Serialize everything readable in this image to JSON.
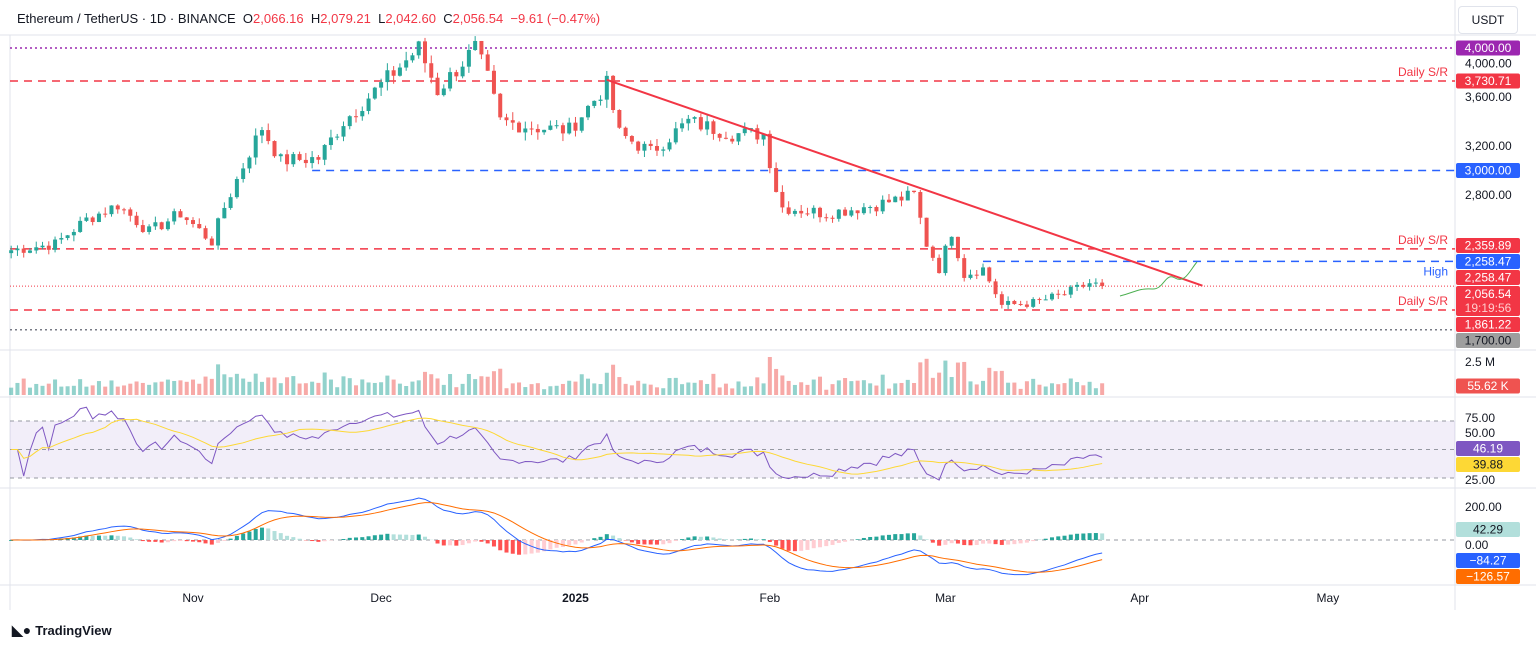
{
  "header": {
    "symbol": "Ethereum / TetherUS · 1D · BINANCE",
    "o_label": "O",
    "o": "2,066.16",
    "h_label": "H",
    "h": "2,079.21",
    "l_label": "L",
    "l": "2,042.60",
    "c_label": "C",
    "c": "2,056.54",
    "change": "−9.61 (−0.47%)"
  },
  "currency": "USDT",
  "branding": "TradingView",
  "colors": {
    "up": "#26a69a",
    "down": "#ef5350",
    "sr": "#f23645",
    "blue": "#2962ff",
    "rsi": "#7e57c2",
    "rsi_ma": "#fdd835",
    "macd": "#2962ff",
    "signal": "#ff6d00",
    "trend": "#f23645",
    "projection": "#4caf50"
  },
  "chart_data": {
    "type": "candlestick",
    "price_ticks": [
      "4,000.00",
      "3,600.00",
      "3,200.00",
      "2,800.00"
    ],
    "price_tick_values": [
      4000,
      3600,
      3200,
      2800
    ],
    "time_labels": [
      {
        "date": "2024-11-01",
        "label": "Nov"
      },
      {
        "date": "2024-12-01",
        "label": "Dec"
      },
      {
        "date": "2025-01-01",
        "label": "2025"
      },
      {
        "date": "2025-02-01",
        "label": "Feb"
      },
      {
        "date": "2025-03-01",
        "label": "Mar"
      },
      {
        "date": "2025-04-01",
        "label": "Apr"
      },
      {
        "date": "2025-05-01",
        "label": "May"
      }
    ],
    "close_keypoints": [
      [
        "2024-10-03",
        2350
      ],
      [
        "2024-10-10",
        2400
      ],
      [
        "2024-10-15",
        2600
      ],
      [
        "2024-10-20",
        2720
      ],
      [
        "2024-10-25",
        2500
      ],
      [
        "2024-10-30",
        2650
      ],
      [
        "2024-11-04",
        2420
      ],
      [
        "2024-11-06",
        2700
      ],
      [
        "2024-11-10",
        3150
      ],
      [
        "2024-11-12",
        3350
      ],
      [
        "2024-11-15",
        3080
      ],
      [
        "2024-11-21",
        3100
      ],
      [
        "2024-11-25",
        3400
      ],
      [
        "2024-12-01",
        3700
      ],
      [
        "2024-12-07",
        4000
      ],
      [
        "2024-12-10",
        3650
      ],
      [
        "2024-12-16",
        4000
      ],
      [
        "2024-12-18",
        3750
      ],
      [
        "2024-12-20",
        3400
      ],
      [
        "2024-12-26",
        3350
      ],
      [
        "2024-12-31",
        3330
      ],
      [
        "2025-01-06",
        3700
      ],
      [
        "2025-01-08",
        3300
      ],
      [
        "2025-01-13",
        3150
      ],
      [
        "2025-01-19",
        3400
      ],
      [
        "2025-01-26",
        3300
      ],
      [
        "2025-01-31",
        3300
      ],
      [
        "2025-02-02",
        2850
      ],
      [
        "2025-02-03",
        2700
      ],
      [
        "2025-02-10",
        2650
      ],
      [
        "2025-02-18",
        2720
      ],
      [
        "2025-02-24",
        2800
      ],
      [
        "2025-02-26",
        2400
      ],
      [
        "2025-02-28",
        2200
      ],
      [
        "2025-03-02",
        2500
      ],
      [
        "2025-03-04",
        2150
      ],
      [
        "2025-03-07",
        2200
      ],
      [
        "2025-03-10",
        1900
      ],
      [
        "2025-03-15",
        1920
      ],
      [
        "2025-03-20",
        1990
      ],
      [
        "2025-03-24",
        2080
      ],
      [
        "2025-03-26",
        2056.54
      ]
    ],
    "levels": [
      {
        "price": 4000,
        "label": "4,000.00",
        "style": "dotted",
        "color": "#9c27b0"
      },
      {
        "price": 3730.71,
        "label": "3,730.71",
        "style": "dashed",
        "color": "#f23645",
        "note": "Daily S/R"
      },
      {
        "price": 3000,
        "label": "3,000.00",
        "style": "dashed",
        "color": "#2962ff",
        "from": "2024-11-20"
      },
      {
        "price": 2359.89,
        "label": "2,359.89",
        "style": "dashed",
        "color": "#f23645",
        "note": "Daily S/R"
      },
      {
        "price": 2258.47,
        "label": "2,258.47",
        "style": "dashed",
        "color": "#2962ff",
        "note": "High",
        "from": "2025-03-07"
      },
      {
        "price": 1861.22,
        "label": "1,861.22",
        "style": "dashed",
        "color": "#f23645",
        "note": "Daily S/R"
      },
      {
        "price": 1700,
        "label": "1,700.00",
        "style": "dotted",
        "color": "#787b86"
      }
    ],
    "last_price": {
      "price": 2056.54,
      "label": "2,056.54",
      "countdown": "19:19:56",
      "extra_label": "2,258.47"
    },
    "trendline": [
      [
        "2025-01-06",
        3740
      ],
      [
        "2025-04-11",
        2060
      ]
    ],
    "volume": {
      "tick": "2.5 M",
      "last": "55.62 K"
    },
    "rsi": {
      "ticks": [
        "75.00",
        "50.00",
        "25.00"
      ],
      "value": "46.19",
      "ma": "39.88"
    },
    "macd": {
      "ticks": [
        "200.00",
        "0.00"
      ],
      "hist": "42.29",
      "macd": "−84.27",
      "signal": "−126.57"
    }
  }
}
